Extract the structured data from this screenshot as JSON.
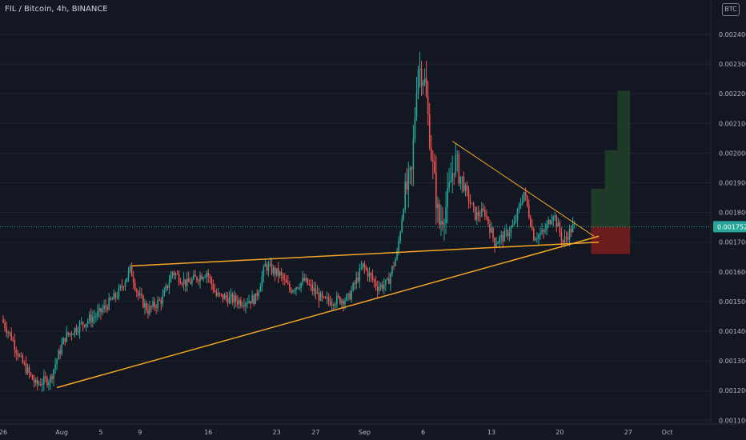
{
  "header": {
    "title": "FIL / Bitcoin, 4h, BINANCE",
    "currency_badge": "BTC"
  },
  "chart_data": {
    "type": "candlestick",
    "y_range": [
      0.0011,
      0.00245
    ],
    "y_ticks": [
      "0.002400",
      "0.002300",
      "0.002200",
      "0.002100",
      "0.002000",
      "0.001900",
      "0.001800",
      "0.001700",
      "0.001600",
      "0.001500",
      "0.001400",
      "0.001300",
      "0.001200",
      "0.001100"
    ],
    "y_tick_values": [
      0.0024,
      0.0023,
      0.0022,
      0.0021,
      0.002,
      0.0019,
      0.0018,
      0.0017,
      0.0016,
      0.0015,
      0.0014,
      0.0013,
      0.0012,
      0.0011
    ],
    "x_ticks": [
      {
        "label": "26",
        "day": 0
      },
      {
        "label": "Aug",
        "day": 6
      },
      {
        "label": "5",
        "day": 10
      },
      {
        "label": "9",
        "day": 14
      },
      {
        "label": "16",
        "day": 21
      },
      {
        "label": "23",
        "day": 28
      },
      {
        "label": "27",
        "day": 32
      },
      {
        "label": "Sep",
        "day": 37
      },
      {
        "label": "6",
        "day": 43
      },
      {
        "label": "13",
        "day": 50
      },
      {
        "label": "20",
        "day": 57
      },
      {
        "label": "27",
        "day": 64
      },
      {
        "label": "Oct",
        "day": 68
      }
    ],
    "current_price": {
      "label": "0.001752",
      "value": 0.001752,
      "color": "#26a69a"
    },
    "colors": {
      "up": "#26a69a",
      "down": "#ef5350",
      "trendline": "#f6a524",
      "gridline": "#1f2430",
      "target_zone": "#1d3b26",
      "stop_zone": "#6b1d1d"
    },
    "anchors": [
      {
        "day": 0.0,
        "price": 0.00144
      },
      {
        "day": 1.0,
        "price": 0.00138
      },
      {
        "day": 2.0,
        "price": 0.0013
      },
      {
        "day": 3.5,
        "price": 0.00122
      },
      {
        "day": 5.0,
        "price": 0.00124
      },
      {
        "day": 5.6,
        "price": 0.0013
      },
      {
        "day": 6.5,
        "price": 0.00138
      },
      {
        "day": 8.0,
        "price": 0.00142
      },
      {
        "day": 10.0,
        "price": 0.00146
      },
      {
        "day": 12.0,
        "price": 0.00153
      },
      {
        "day": 13.2,
        "price": 0.00161
      },
      {
        "day": 14.0,
        "price": 0.00152
      },
      {
        "day": 15.0,
        "price": 0.00147
      },
      {
        "day": 16.5,
        "price": 0.00151
      },
      {
        "day": 17.5,
        "price": 0.0016
      },
      {
        "day": 19.0,
        "price": 0.00156
      },
      {
        "day": 21.0,
        "price": 0.0016
      },
      {
        "day": 22.0,
        "price": 0.00152
      },
      {
        "day": 24.5,
        "price": 0.0015
      },
      {
        "day": 26.0,
        "price": 0.00151
      },
      {
        "day": 27.0,
        "price": 0.00162
      },
      {
        "day": 28.5,
        "price": 0.00159
      },
      {
        "day": 29.5,
        "price": 0.00154
      },
      {
        "day": 31.0,
        "price": 0.00157
      },
      {
        "day": 33.0,
        "price": 0.0015
      },
      {
        "day": 35.5,
        "price": 0.00151
      },
      {
        "day": 37.0,
        "price": 0.00162
      },
      {
        "day": 38.5,
        "price": 0.00155
      },
      {
        "day": 39.5,
        "price": 0.00156
      },
      {
        "day": 40.5,
        "price": 0.00166
      },
      {
        "day": 41.3,
        "price": 0.00186
      },
      {
        "day": 42.0,
        "price": 0.00193
      },
      {
        "day": 42.6,
        "price": 0.0023
      },
      {
        "day": 43.3,
        "price": 0.00225
      },
      {
        "day": 44.0,
        "price": 0.002
      },
      {
        "day": 44.8,
        "price": 0.00176
      },
      {
        "day": 45.6,
        "price": 0.00183
      },
      {
        "day": 46.4,
        "price": 0.00198
      },
      {
        "day": 47.2,
        "price": 0.0019
      },
      {
        "day": 48.5,
        "price": 0.00179
      },
      {
        "day": 49.5,
        "price": 0.0018
      },
      {
        "day": 50.5,
        "price": 0.0017
      },
      {
        "day": 51.5,
        "price": 0.00172
      },
      {
        "day": 52.5,
        "price": 0.00176
      },
      {
        "day": 53.5,
        "price": 0.00187
      },
      {
        "day": 54.5,
        "price": 0.00172
      },
      {
        "day": 55.5,
        "price": 0.00173
      },
      {
        "day": 56.5,
        "price": 0.0018
      },
      {
        "day": 57.5,
        "price": 0.0017
      },
      {
        "day": 58.5,
        "price": 0.001752
      }
    ],
    "trendlines": [
      {
        "name": "lower-ascending",
        "from": {
          "day": 5.5,
          "price": 0.00121
        },
        "to": {
          "day": 61.0,
          "price": 0.00172
        }
      },
      {
        "name": "upper-flat",
        "from": {
          "day": 13.2,
          "price": 0.00162
        },
        "to": {
          "day": 61.0,
          "price": 0.0017
        }
      },
      {
        "name": "upper-descending",
        "from": {
          "day": 46.0,
          "price": 0.00204
        },
        "to": {
          "day": 60.5,
          "price": 0.00172
        }
      }
    ],
    "target_steps": [
      {
        "from_day": 60.2,
        "to_day": 61.6,
        "top": 0.00188
      },
      {
        "from_day": 61.6,
        "to_day": 62.9,
        "top": 0.00201
      },
      {
        "from_day": 62.9,
        "to_day": 64.2,
        "top": 0.00221
      }
    ],
    "stop_zone": {
      "from_day": 60.2,
      "to_day": 64.2,
      "top": 0.001752,
      "bottom": 0.00166
    }
  }
}
